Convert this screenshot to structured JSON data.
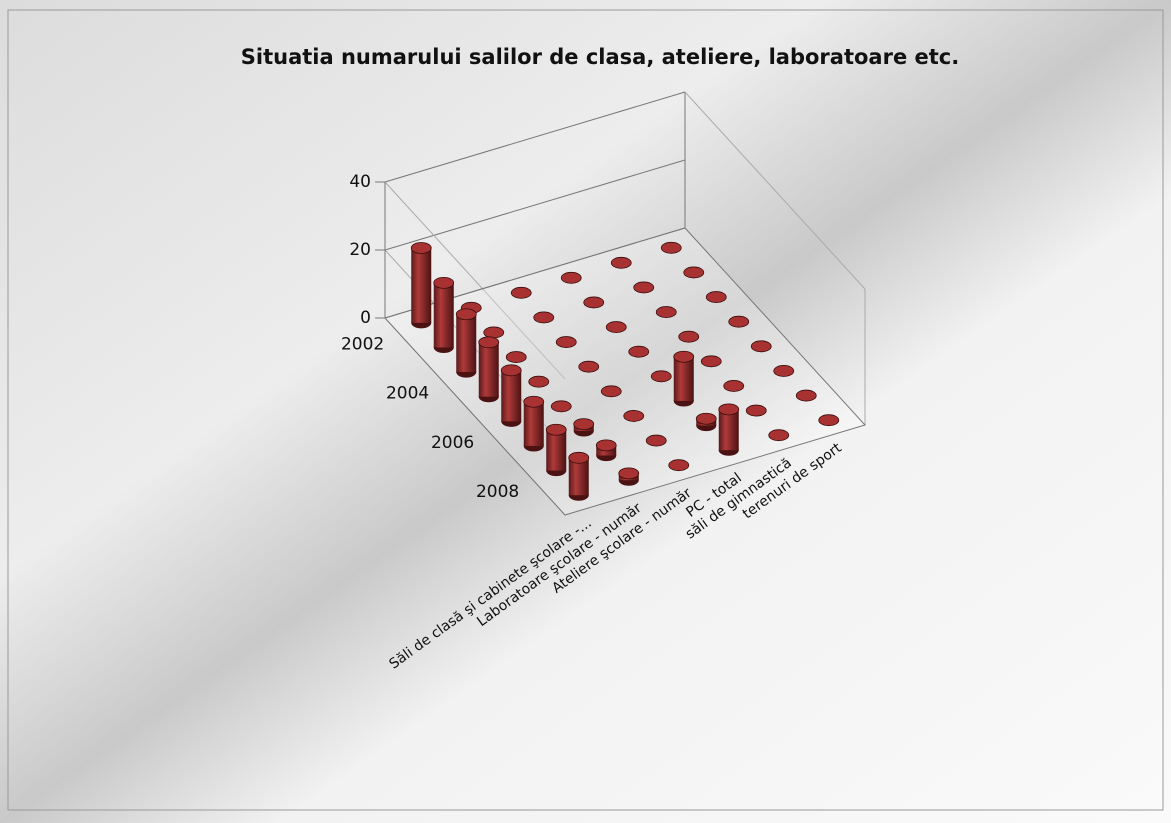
{
  "chart_data": {
    "type": "bar3d",
    "title": "Situatia numarului salilor de clasa, ateliere, laboratoare etc.",
    "categories": [
      "Săli de clasă şi cabinete şcolare -...",
      "Laboratoare şcolare - număr",
      "Ateliere şcolare - număr",
      "PC - total",
      "săli de gimnastică",
      "terenuri de sport"
    ],
    "depth_categories": [
      "2002",
      null,
      "2004",
      null,
      "2006",
      null,
      "2008",
      null
    ],
    "series": [
      {
        "name": "2002",
        "color": "#a83232",
        "values": [
          22,
          0,
          0,
          0,
          0,
          0
        ]
      },
      {
        "name": null,
        "color": "#a83232",
        "values": [
          19,
          0,
          0,
          0,
          0,
          0
        ]
      },
      {
        "name": "2004",
        "color": "#a83232",
        "values": [
          17,
          0,
          0,
          0,
          0,
          0
        ]
      },
      {
        "name": null,
        "color": "#a83232",
        "values": [
          16,
          0,
          0,
          0,
          0,
          0
        ]
      },
      {
        "name": "2006",
        "color": "#a83232",
        "values": [
          15,
          0,
          0,
          0,
          0,
          0
        ]
      },
      {
        "name": null,
        "color": "#a83232",
        "values": [
          13,
          2,
          0,
          13,
          0,
          0
        ]
      },
      {
        "name": "2008",
        "color": "#a83232",
        "values": [
          12,
          3,
          0,
          2,
          0,
          0
        ]
      },
      {
        "name": null,
        "color": "#a83232",
        "values": [
          11,
          2,
          0,
          12,
          0,
          0
        ]
      }
    ],
    "ylim": [
      0,
      40
    ],
    "yticks": [
      0,
      20,
      40
    ],
    "grid": true
  }
}
